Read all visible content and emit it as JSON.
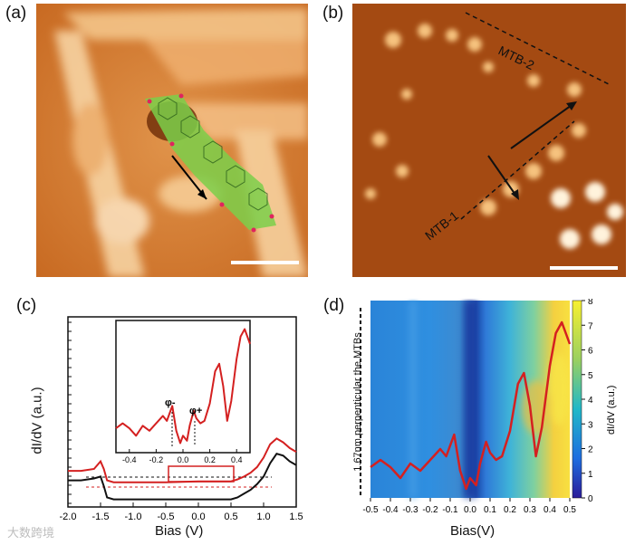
{
  "panels": {
    "a": {
      "label": "(a)"
    },
    "b": {
      "label": "(b)",
      "mtb1": "MTB-1",
      "mtb2": "MTB-2"
    },
    "c": {
      "label": "(c)",
      "ylabel": "dI/dV (a.u.)",
      "xlabel": "Bias (V)",
      "inset_labels": {
        "phi_minus": "φ-",
        "phi_plus": "φ+"
      }
    },
    "d": {
      "label": "(d)",
      "ylabel": "1.67nm perpenticular the MTBs",
      "xlabel": "Bias(V)",
      "colorbar_label": "dI/dV (a.u.)"
    }
  },
  "watermark": "大数跨境",
  "colors": {
    "red": "#d42020",
    "black": "#111111",
    "stm_dark": "#8a3a08",
    "stm_bright": "#fff2d8"
  },
  "chart_data": [
    {
      "type": "line",
      "panel": "c",
      "xlabel": "Bias (V)",
      "ylabel": "dI/dV (a.u.)",
      "xlim": [
        -2.0,
        1.5
      ],
      "ylim": [
        0,
        10
      ],
      "xticks": [
        "-2.0",
        "-1.5",
        "-1.0",
        "-0.5",
        "0.0",
        "0.5",
        "1.0",
        "1.5"
      ],
      "series": [
        {
          "color": "#d42020",
          "x": [
            -2.0,
            -1.8,
            -1.6,
            -1.5,
            -1.45,
            -1.4,
            -1.3,
            -1.0,
            -0.5,
            0.0,
            0.5,
            0.6,
            0.7,
            0.8,
            0.9,
            1.0,
            1.1,
            1.2,
            1.3,
            1.4,
            1.5
          ],
          "y": [
            1.9,
            1.9,
            2.0,
            2.4,
            2.0,
            1.4,
            1.3,
            1.3,
            1.3,
            1.35,
            1.35,
            1.45,
            1.6,
            1.8,
            2.1,
            2.6,
            3.3,
            3.6,
            3.4,
            3.1,
            2.9
          ]
        },
        {
          "color": "#111111",
          "x": [
            -2.0,
            -1.8,
            -1.6,
            -1.5,
            -1.45,
            -1.4,
            -1.3,
            -1.0,
            -0.5,
            0.0,
            0.5,
            0.6,
            0.7,
            0.8,
            0.9,
            1.0,
            1.1,
            1.2,
            1.3,
            1.4,
            1.5
          ],
          "y": [
            1.4,
            1.4,
            1.5,
            1.6,
            1.1,
            0.5,
            0.4,
            0.4,
            0.4,
            0.4,
            0.4,
            0.5,
            0.7,
            0.9,
            1.2,
            1.6,
            2.3,
            2.8,
            2.7,
            2.4,
            2.2
          ]
        }
      ]
    },
    {
      "type": "line",
      "panel": "c-inset",
      "xlim": [
        -0.5,
        0.5
      ],
      "xticks": [
        "-0.4",
        "-0.2",
        "0.0",
        "0.2",
        "0.4"
      ],
      "series": [
        {
          "color": "#d42020",
          "x": [
            -0.5,
            -0.45,
            -0.4,
            -0.35,
            -0.3,
            -0.25,
            -0.2,
            -0.15,
            -0.12,
            -0.08,
            -0.05,
            -0.02,
            0.0,
            0.03,
            0.05,
            0.08,
            0.1,
            0.13,
            0.16,
            0.2,
            0.24,
            0.27,
            0.3,
            0.33,
            0.36,
            0.4,
            0.43,
            0.46,
            0.5
          ],
          "y": [
            0.16,
            0.2,
            0.16,
            0.1,
            0.18,
            0.14,
            0.2,
            0.26,
            0.22,
            0.34,
            0.14,
            0.04,
            0.1,
            0.06,
            0.18,
            0.3,
            0.24,
            0.2,
            0.22,
            0.36,
            0.62,
            0.68,
            0.5,
            0.22,
            0.38,
            0.72,
            0.9,
            0.96,
            0.84
          ]
        }
      ]
    },
    {
      "type": "heatmap",
      "panel": "d",
      "xlabel": "Bias(V)",
      "xlim": [
        -0.5,
        0.5
      ],
      "xticks": [
        "-0.5",
        "-0.4",
        "-0.3",
        "-0.2",
        "-0.1",
        "0.0",
        "0.1",
        "0.2",
        "0.3",
        "0.4",
        "0.5"
      ],
      "colorbar": {
        "label": "dI/dV (a.u.)",
        "range": [
          0,
          8
        ],
        "ticks": [
          "0",
          "1",
          "2",
          "3",
          "4",
          "5",
          "6",
          "7",
          "8"
        ]
      },
      "overlay_line": {
        "color": "#d42020",
        "x": [
          -0.5,
          -0.45,
          -0.4,
          -0.35,
          -0.3,
          -0.25,
          -0.2,
          -0.15,
          -0.12,
          -0.08,
          -0.05,
          -0.02,
          0.0,
          0.03,
          0.05,
          0.08,
          0.1,
          0.13,
          0.16,
          0.2,
          0.24,
          0.27,
          0.3,
          0.33,
          0.36,
          0.4,
          0.43,
          0.46,
          0.5
        ],
        "y": [
          0.16,
          0.2,
          0.16,
          0.1,
          0.18,
          0.14,
          0.2,
          0.26,
          0.22,
          0.34,
          0.14,
          0.04,
          0.1,
          0.06,
          0.18,
          0.3,
          0.24,
          0.2,
          0.22,
          0.36,
          0.62,
          0.68,
          0.5,
          0.22,
          0.38,
          0.72,
          0.9,
          0.96,
          0.84
        ]
      }
    }
  ]
}
